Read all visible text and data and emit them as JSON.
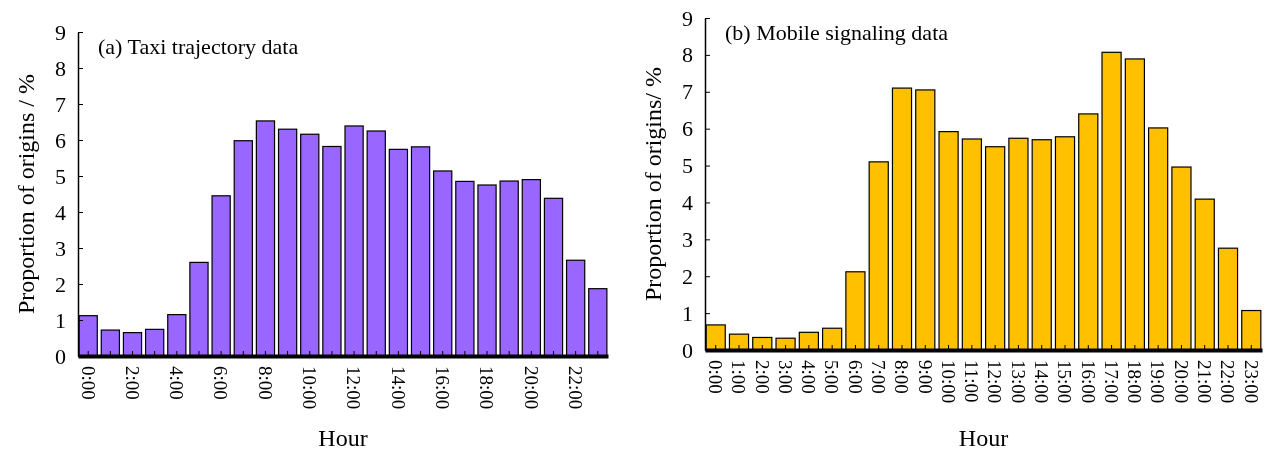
{
  "chart_data": [
    {
      "type": "bar",
      "title": "(a) Taxi trajectory data",
      "xlabel": "Hour",
      "ylabel": "Proportion of origins / %",
      "categories": [
        "0:00",
        null,
        "2:00",
        null,
        "4:00",
        null,
        "6:00",
        null,
        "8:00",
        null,
        "10:00",
        null,
        "12:00",
        null,
        "14:00",
        null,
        "16:00",
        null,
        "18:00",
        null,
        "20:00",
        null,
        "22:00",
        null
      ],
      "values": [
        1.12,
        0.72,
        0.65,
        0.74,
        1.15,
        2.6,
        4.45,
        5.98,
        6.53,
        6.3,
        6.16,
        5.82,
        6.39,
        6.25,
        5.74,
        5.81,
        5.14,
        4.85,
        4.75,
        4.86,
        4.9,
        4.38,
        2.66,
        1.87
      ],
      "color": "#9966ff",
      "ylim": [
        0,
        9
      ],
      "yticks": [
        0,
        1,
        2,
        3,
        4,
        5,
        6,
        7,
        8,
        9
      ],
      "grid": false,
      "legend": false
    },
    {
      "type": "bar",
      "title": "(b) Mobile signaling data",
      "xlabel": "Hour",
      "ylabel": "Proportion of origins/ %",
      "categories": [
        "0:00",
        "1:00",
        "2:00",
        "3:00",
        "4:00",
        "5:00",
        "6:00",
        "7:00",
        "8:00",
        "9:00",
        "10:00",
        "11:00",
        "12:00",
        "13:00",
        "14:00",
        "15:00",
        "16:00",
        "17:00",
        "18:00",
        "19:00",
        "20:00",
        "21:00",
        "22:00",
        "23:00"
      ],
      "values": [
        0.68,
        0.43,
        0.34,
        0.32,
        0.48,
        0.59,
        2.12,
        5.1,
        7.1,
        7.05,
        5.92,
        5.72,
        5.51,
        5.74,
        5.7,
        5.78,
        6.4,
        8.07,
        7.89,
        6.02,
        4.96,
        4.09,
        2.76,
        1.07
      ],
      "color": "#ffc000",
      "ylim": [
        0,
        9
      ],
      "yticks": [
        0,
        1,
        2,
        3,
        4,
        5,
        6,
        7,
        8,
        9
      ],
      "grid": false,
      "legend": false
    }
  ]
}
